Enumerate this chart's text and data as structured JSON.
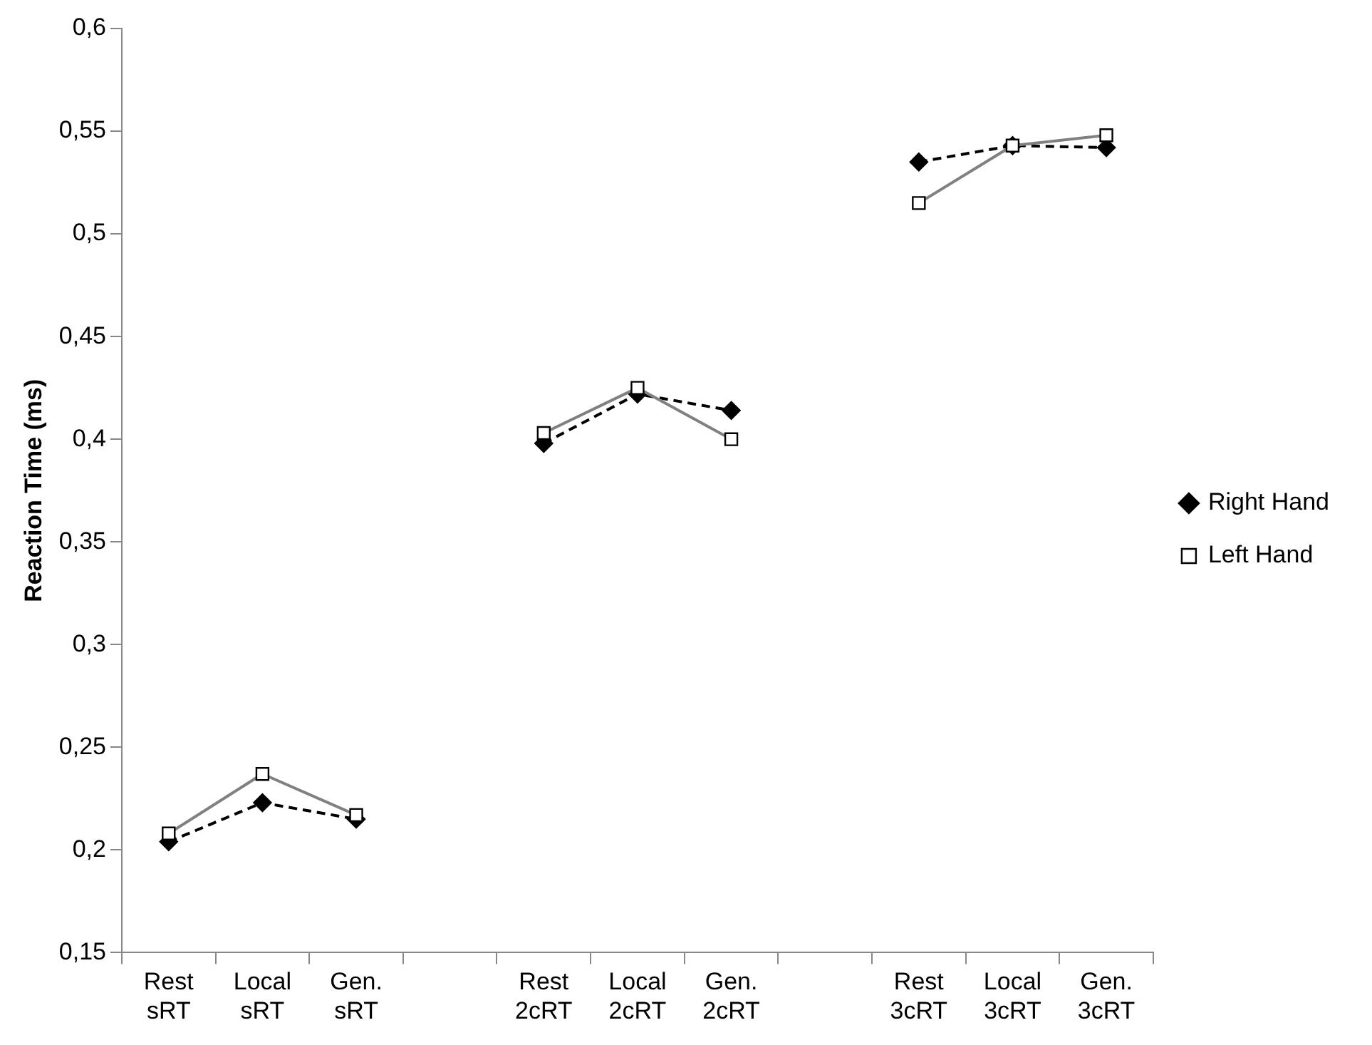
{
  "chart_data": {
    "type": "line",
    "ylabel": "Reaction Time (ms)",
    "categories": [
      "Rest sRT",
      "Local sRT",
      "Gen. sRT",
      null,
      "Rest 2cRT",
      "Local 2cRT",
      "Gen. 2cRT",
      null,
      "Rest 3cRT",
      "Local 3cRT",
      "Gen. 3cRT"
    ],
    "series": [
      {
        "name": "Right Hand",
        "color": "#000000",
        "marker": "diamond",
        "line_style": "dashed",
        "values": [
          0.204,
          0.223,
          0.215,
          null,
          0.398,
          0.422,
          0.414,
          null,
          0.535,
          0.543,
          0.542
        ]
      },
      {
        "name": "Left Hand",
        "color": "#808080",
        "marker": "square",
        "line_style": "solid",
        "values": [
          0.208,
          0.237,
          0.217,
          null,
          0.403,
          0.425,
          0.4,
          null,
          0.515,
          0.543,
          0.548
        ]
      }
    ],
    "ylim": [
      0.15,
      0.6
    ],
    "yticks": [
      {
        "value": 0.15,
        "label": "0,15"
      },
      {
        "value": 0.2,
        "label": "0,2"
      },
      {
        "value": 0.25,
        "label": "0,25"
      },
      {
        "value": 0.3,
        "label": "0,3"
      },
      {
        "value": 0.35,
        "label": "0,35"
      },
      {
        "value": 0.4,
        "label": "0,4"
      },
      {
        "value": 0.45,
        "label": "0,45"
      },
      {
        "value": 0.5,
        "label": "0,5"
      },
      {
        "value": 0.55,
        "label": "0,55"
      },
      {
        "value": 0.6,
        "label": "0,6"
      }
    ],
    "grid": false,
    "legend": "right"
  }
}
